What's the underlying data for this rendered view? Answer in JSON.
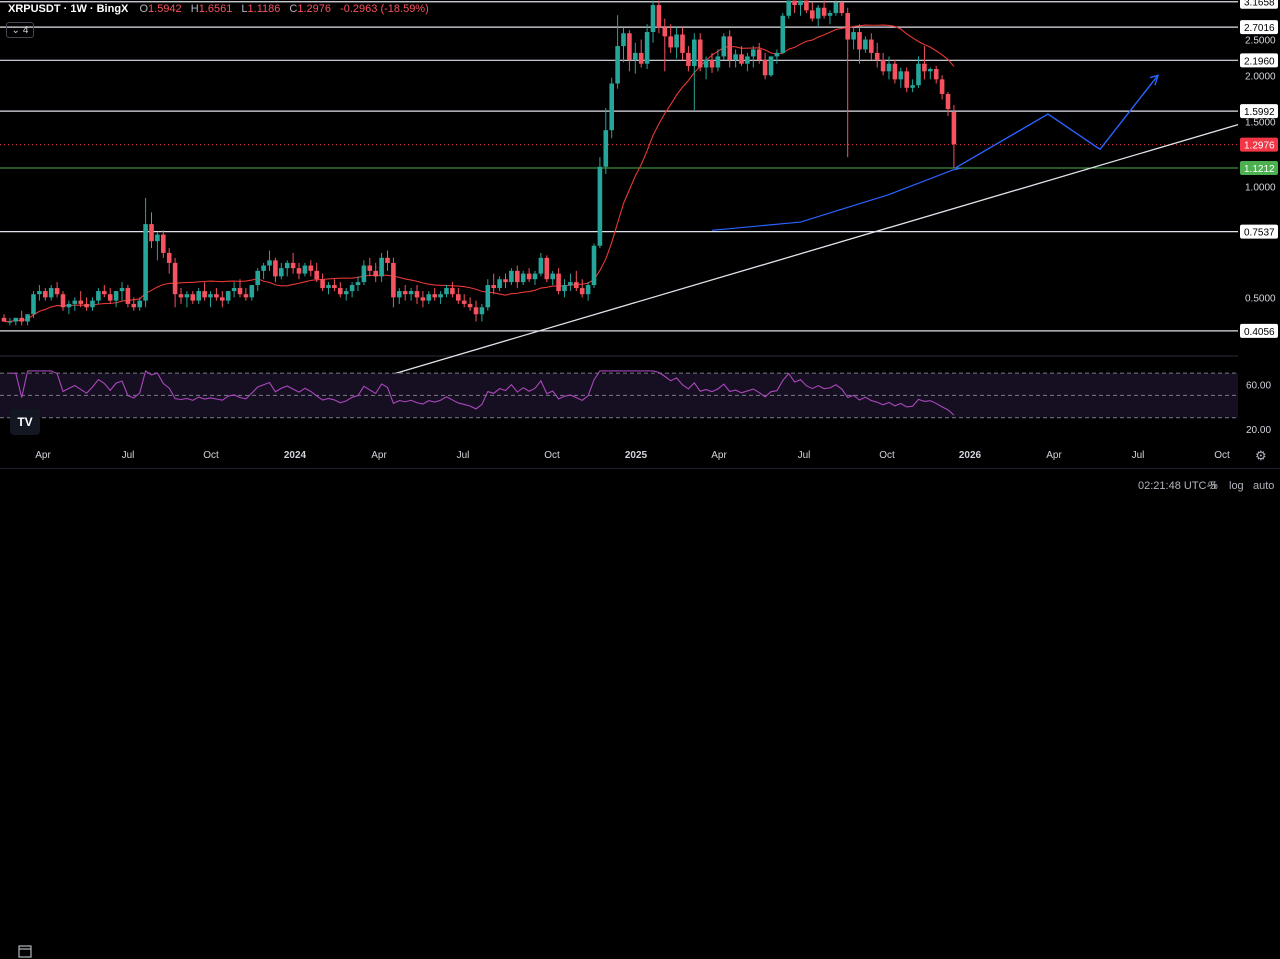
{
  "header": {
    "symbol": "XRPUSDT · 1W · BingX",
    "open_label": "O",
    "open": "1.5942",
    "high_label": "H",
    "high": "1.6561",
    "low_label": "L",
    "low": "1.1186",
    "close_label": "C",
    "close": "1.2976",
    "change": "-0.2963 (-18.59%)"
  },
  "indicator_count": "4",
  "footer": {
    "time": "02:21:48 UTC-5",
    "percent": "%",
    "log": "log",
    "auto": "auto"
  },
  "colors": {
    "up": "#26a69a",
    "down": "#f7525f",
    "ma": "#e53935",
    "rsi": "#ab47bc",
    "trend_blue": "#2962ff",
    "current": "#f23645",
    "support": "#4caf50"
  },
  "chart_data": {
    "type": "candlestick",
    "yscale": "log",
    "ylim": [
      0.36,
      3.2
    ],
    "xlabels": [
      "Apr",
      "Jul",
      "Oct",
      "2024",
      "Apr",
      "Jul",
      "Oct",
      "2025",
      "Apr",
      "Jul",
      "Oct",
      "2026",
      "Apr",
      "Jul",
      "Oct"
    ],
    "y_ticks": [
      "2.5000",
      "2.0000",
      "1.5000",
      "1.0000",
      "0.5000"
    ],
    "horizontal_levels": [
      3.1658,
      2.7016,
      2.196,
      1.5992,
      0.7537,
      0.4056
    ],
    "current_price": 1.2976,
    "support_price": 1.1212,
    "rsi": {
      "levels": [
        70,
        50,
        30
      ],
      "axis_labels": [
        "60.00",
        "20.00"
      ]
    },
    "candles_weekly_approx": [
      [
        0.44,
        0.45,
        0.43,
        0.43
      ],
      [
        0.43,
        0.44,
        0.42,
        0.43
      ],
      [
        0.43,
        0.44,
        0.42,
        0.44
      ],
      [
        0.44,
        0.46,
        0.42,
        0.43
      ],
      [
        0.43,
        0.45,
        0.42,
        0.45
      ],
      [
        0.45,
        0.52,
        0.44,
        0.51
      ],
      [
        0.51,
        0.54,
        0.49,
        0.52
      ],
      [
        0.52,
        0.53,
        0.49,
        0.5
      ],
      [
        0.5,
        0.54,
        0.49,
        0.53
      ],
      [
        0.53,
        0.55,
        0.5,
        0.51
      ],
      [
        0.51,
        0.52,
        0.46,
        0.47
      ],
      [
        0.47,
        0.49,
        0.45,
        0.48
      ],
      [
        0.48,
        0.5,
        0.46,
        0.49
      ],
      [
        0.49,
        0.52,
        0.47,
        0.48
      ],
      [
        0.48,
        0.5,
        0.46,
        0.47
      ],
      [
        0.47,
        0.5,
        0.46,
        0.49
      ],
      [
        0.49,
        0.53,
        0.48,
        0.52
      ],
      [
        0.52,
        0.54,
        0.5,
        0.51
      ],
      [
        0.51,
        0.53,
        0.48,
        0.49
      ],
      [
        0.49,
        0.52,
        0.47,
        0.52
      ],
      [
        0.52,
        0.55,
        0.49,
        0.53
      ],
      [
        0.53,
        0.54,
        0.47,
        0.48
      ],
      [
        0.48,
        0.5,
        0.46,
        0.47
      ],
      [
        0.47,
        0.5,
        0.46,
        0.49
      ],
      [
        0.49,
        0.93,
        0.47,
        0.79
      ],
      [
        0.79,
        0.85,
        0.68,
        0.71
      ],
      [
        0.71,
        0.75,
        0.63,
        0.74
      ],
      [
        0.74,
        0.76,
        0.64,
        0.66
      ],
      [
        0.66,
        0.68,
        0.58,
        0.62
      ],
      [
        0.62,
        0.64,
        0.47,
        0.51
      ],
      [
        0.51,
        0.53,
        0.48,
        0.5
      ],
      [
        0.5,
        0.52,
        0.47,
        0.51
      ],
      [
        0.51,
        0.52,
        0.48,
        0.49
      ],
      [
        0.49,
        0.53,
        0.48,
        0.52
      ],
      [
        0.52,
        0.55,
        0.49,
        0.5
      ],
      [
        0.5,
        0.52,
        0.47,
        0.51
      ],
      [
        0.51,
        0.53,
        0.49,
        0.5
      ],
      [
        0.5,
        0.52,
        0.47,
        0.49
      ],
      [
        0.49,
        0.52,
        0.48,
        0.52
      ],
      [
        0.52,
        0.55,
        0.5,
        0.53
      ],
      [
        0.53,
        0.56,
        0.5,
        0.51
      ],
      [
        0.51,
        0.53,
        0.49,
        0.5
      ],
      [
        0.5,
        0.54,
        0.49,
        0.54
      ],
      [
        0.54,
        0.6,
        0.52,
        0.59
      ],
      [
        0.59,
        0.62,
        0.56,
        0.61
      ],
      [
        0.61,
        0.67,
        0.59,
        0.63
      ],
      [
        0.63,
        0.64,
        0.55,
        0.57
      ],
      [
        0.57,
        0.62,
        0.56,
        0.6
      ],
      [
        0.6,
        0.63,
        0.57,
        0.62
      ],
      [
        0.62,
        0.66,
        0.58,
        0.6
      ],
      [
        0.6,
        0.62,
        0.56,
        0.58
      ],
      [
        0.58,
        0.62,
        0.57,
        0.61
      ],
      [
        0.61,
        0.63,
        0.57,
        0.59
      ],
      [
        0.59,
        0.62,
        0.55,
        0.56
      ],
      [
        0.56,
        0.58,
        0.52,
        0.53
      ],
      [
        0.53,
        0.55,
        0.51,
        0.54
      ],
      [
        0.54,
        0.56,
        0.52,
        0.53
      ],
      [
        0.53,
        0.55,
        0.5,
        0.51
      ],
      [
        0.51,
        0.53,
        0.49,
        0.52
      ],
      [
        0.52,
        0.55,
        0.5,
        0.54
      ],
      [
        0.54,
        0.57,
        0.52,
        0.55
      ],
      [
        0.55,
        0.63,
        0.54,
        0.61
      ],
      [
        0.61,
        0.64,
        0.57,
        0.59
      ],
      [
        0.59,
        0.62,
        0.55,
        0.57
      ],
      [
        0.57,
        0.66,
        0.55,
        0.64
      ],
      [
        0.64,
        0.67,
        0.59,
        0.62
      ],
      [
        0.62,
        0.64,
        0.47,
        0.5
      ],
      [
        0.5,
        0.53,
        0.48,
        0.52
      ],
      [
        0.52,
        0.54,
        0.49,
        0.51
      ],
      [
        0.51,
        0.53,
        0.49,
        0.52
      ],
      [
        0.52,
        0.54,
        0.48,
        0.5
      ],
      [
        0.5,
        0.52,
        0.47,
        0.49
      ],
      [
        0.49,
        0.52,
        0.48,
        0.51
      ],
      [
        0.51,
        0.53,
        0.49,
        0.5
      ],
      [
        0.5,
        0.52,
        0.48,
        0.51
      ],
      [
        0.51,
        0.54,
        0.5,
        0.53
      ],
      [
        0.53,
        0.55,
        0.5,
        0.51
      ],
      [
        0.51,
        0.53,
        0.48,
        0.49
      ],
      [
        0.49,
        0.51,
        0.47,
        0.48
      ],
      [
        0.48,
        0.5,
        0.46,
        0.47
      ],
      [
        0.47,
        0.49,
        0.43,
        0.45
      ],
      [
        0.45,
        0.48,
        0.43,
        0.47
      ],
      [
        0.47,
        0.56,
        0.46,
        0.54
      ],
      [
        0.54,
        0.58,
        0.51,
        0.53
      ],
      [
        0.53,
        0.57,
        0.52,
        0.56
      ],
      [
        0.56,
        0.58,
        0.53,
        0.55
      ],
      [
        0.55,
        0.6,
        0.54,
        0.59
      ],
      [
        0.59,
        0.61,
        0.53,
        0.55
      ],
      [
        0.55,
        0.59,
        0.54,
        0.58
      ],
      [
        0.58,
        0.6,
        0.55,
        0.56
      ],
      [
        0.56,
        0.59,
        0.54,
        0.58
      ],
      [
        0.58,
        0.66,
        0.57,
        0.64
      ],
      [
        0.64,
        0.65,
        0.55,
        0.56
      ],
      [
        0.56,
        0.59,
        0.54,
        0.58
      ],
      [
        0.58,
        0.6,
        0.51,
        0.52
      ],
      [
        0.52,
        0.56,
        0.5,
        0.54
      ],
      [
        0.54,
        0.58,
        0.52,
        0.55
      ],
      [
        0.55,
        0.59,
        0.52,
        0.53
      ],
      [
        0.53,
        0.56,
        0.5,
        0.51
      ],
      [
        0.51,
        0.55,
        0.49,
        0.54
      ],
      [
        0.54,
        0.7,
        0.53,
        0.69
      ],
      [
        0.69,
        1.2,
        0.68,
        1.13
      ],
      [
        1.13,
        1.63,
        1.08,
        1.42
      ],
      [
        1.42,
        1.97,
        1.35,
        1.9
      ],
      [
        1.9,
        2.91,
        1.84,
        2.4
      ],
      [
        2.4,
        2.7,
        2.17,
        2.6
      ],
      [
        2.6,
        2.65,
        2.05,
        2.2
      ],
      [
        2.2,
        2.45,
        2.02,
        2.3
      ],
      [
        2.3,
        2.5,
        2.1,
        2.15
      ],
      [
        2.15,
        2.75,
        2.08,
        2.62
      ],
      [
        2.62,
        3.4,
        2.45,
        3.1
      ],
      [
        3.1,
        3.3,
        2.6,
        2.7
      ],
      [
        2.7,
        2.85,
        2.05,
        2.55
      ],
      [
        2.55,
        2.75,
        2.3,
        2.38
      ],
      [
        2.38,
        2.7,
        2.22,
        2.58
      ],
      [
        2.58,
        2.7,
        2.2,
        2.3
      ],
      [
        2.3,
        2.4,
        2.05,
        2.12
      ],
      [
        2.12,
        2.6,
        1.61,
        2.5
      ],
      [
        2.5,
        2.6,
        2.05,
        2.1
      ],
      [
        2.1,
        2.25,
        1.95,
        2.2
      ],
      [
        2.2,
        2.3,
        2.03,
        2.1
      ],
      [
        2.1,
        2.35,
        2.05,
        2.25
      ],
      [
        2.25,
        2.6,
        2.2,
        2.55
      ],
      [
        2.55,
        2.65,
        2.1,
        2.2
      ],
      [
        2.2,
        2.35,
        2.1,
        2.28
      ],
      [
        2.28,
        2.4,
        2.12,
        2.15
      ],
      [
        2.15,
        2.3,
        2.05,
        2.25
      ],
      [
        2.25,
        2.4,
        2.1,
        2.35
      ],
      [
        2.35,
        2.45,
        2.15,
        2.2
      ],
      [
        2.2,
        2.3,
        1.95,
        2.0
      ],
      [
        2.0,
        2.25,
        1.98,
        2.25
      ],
      [
        2.25,
        2.35,
        2.15,
        2.3
      ],
      [
        2.3,
        2.95,
        2.28,
        2.9
      ],
      [
        2.9,
        3.65,
        2.85,
        3.5
      ],
      [
        3.5,
        3.66,
        2.95,
        3.1
      ],
      [
        3.1,
        3.4,
        2.9,
        3.3
      ],
      [
        3.3,
        3.4,
        2.95,
        3.0
      ],
      [
        3.0,
        3.15,
        2.8,
        2.85
      ],
      [
        2.85,
        3.1,
        2.7,
        3.05
      ],
      [
        3.05,
        3.2,
        2.85,
        2.9
      ],
      [
        2.9,
        3.0,
        2.75,
        2.95
      ],
      [
        2.95,
        3.2,
        2.9,
        3.15
      ],
      [
        3.15,
        3.2,
        2.9,
        2.95
      ],
      [
        2.95,
        3.05,
        1.2,
        2.5
      ],
      [
        2.5,
        2.7,
        2.35,
        2.62
      ],
      [
        2.62,
        2.75,
        2.15,
        2.35
      ],
      [
        2.35,
        2.55,
        2.3,
        2.5
      ],
      [
        2.5,
        2.6,
        2.2,
        2.3
      ],
      [
        2.3,
        2.45,
        2.1,
        2.2
      ],
      [
        2.2,
        2.3,
        2.0,
        2.05
      ],
      [
        2.05,
        2.25,
        1.95,
        2.15
      ],
      [
        2.15,
        2.2,
        1.9,
        1.95
      ],
      [
        1.95,
        2.1,
        1.85,
        2.05
      ],
      [
        2.05,
        2.1,
        1.8,
        1.85
      ],
      [
        1.85,
        1.95,
        1.8,
        1.88
      ],
      [
        1.88,
        2.25,
        1.85,
        2.15
      ],
      [
        2.15,
        2.4,
        1.95,
        2.05
      ],
      [
        2.05,
        2.1,
        1.95,
        2.08
      ],
      [
        2.08,
        2.12,
        1.9,
        1.95
      ],
      [
        1.95,
        2.0,
        1.72,
        1.78
      ],
      [
        1.78,
        1.8,
        1.55,
        1.62
      ],
      [
        1.59,
        1.66,
        1.12,
        1.3
      ]
    ],
    "series": [
      {
        "name": "",
        "ma_approx": "MA-style line over price"
      },
      {
        "name": "",
        "rsi_approx": "RSI(14) line in lower pane"
      }
    ]
  }
}
